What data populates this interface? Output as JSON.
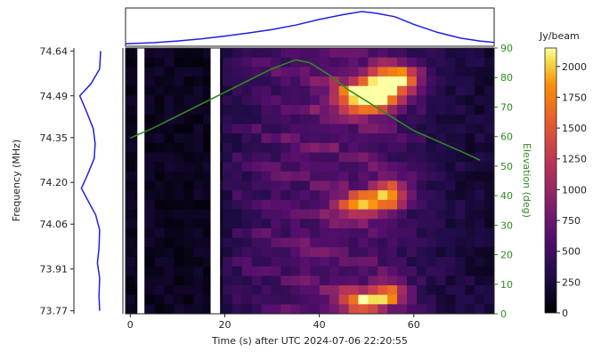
{
  "chart_data": {
    "type": "heatmap",
    "title": "",
    "xlabel": "Time (s) after UTC 2024-07-06 22:20:55",
    "ylabel": "Frequency (MHz)",
    "y2label": "Elevation (deg)",
    "colorbar_label": "Jy/beam",
    "colormap": "inferno",
    "xlim": [
      -1,
      77
    ],
    "ylim_freq": [
      73.76,
      74.65
    ],
    "ylim_elev": [
      0,
      90
    ],
    "clim": [
      0,
      2150
    ],
    "x_ticks": [
      "0",
      "20",
      "40",
      "60"
    ],
    "y_ticks": [
      "74.64",
      "74.49",
      "74.35",
      "74.20",
      "74.06",
      "73.91",
      "73.77"
    ],
    "y2_ticks": [
      "90",
      "80",
      "70",
      "60",
      "50",
      "40",
      "30",
      "20",
      "10",
      "0"
    ],
    "colorbar_ticks": [
      "2000",
      "1750",
      "1500",
      "1250",
      "1000",
      "750",
      "500",
      "250",
      "0"
    ],
    "masked_time_ranges": [
      [
        1.5,
        3
      ],
      [
        17,
        19
      ]
    ],
    "grid": false,
    "elevation_curve": {
      "color": "#2e8b1f",
      "points": [
        [
          0,
          59.5
        ],
        [
          5,
          63
        ],
        [
          10,
          67
        ],
        [
          15,
          71
        ],
        [
          20,
          75
        ],
        [
          25,
          79
        ],
        [
          30,
          83
        ],
        [
          35,
          86
        ],
        [
          38,
          85
        ],
        [
          42,
          81
        ],
        [
          46,
          76
        ],
        [
          50,
          72
        ],
        [
          55,
          67
        ],
        [
          60,
          62
        ],
        [
          65,
          58.5
        ],
        [
          70,
          55
        ],
        [
          74,
          52
        ]
      ]
    },
    "time_profile": {
      "color": "#1f1fe6",
      "points": [
        [
          -1,
          0.02
        ],
        [
          5,
          0.05
        ],
        [
          10,
          0.1
        ],
        [
          15,
          0.16
        ],
        [
          20,
          0.24
        ],
        [
          25,
          0.33
        ],
        [
          30,
          0.43
        ],
        [
          35,
          0.56
        ],
        [
          40,
          0.72
        ],
        [
          45,
          0.86
        ],
        [
          49,
          0.95
        ],
        [
          52,
          0.9
        ],
        [
          56,
          0.8
        ],
        [
          60,
          0.58
        ],
        [
          65,
          0.35
        ],
        [
          70,
          0.18
        ],
        [
          74,
          0.1
        ],
        [
          77,
          0.06
        ]
      ]
    },
    "freq_profile": {
      "color": "#1f1fe6",
      "points": [
        [
          74.64,
          0.75
        ],
        [
          74.58,
          0.72
        ],
        [
          74.53,
          0.45
        ],
        [
          74.49,
          0.1
        ],
        [
          74.44,
          0.3
        ],
        [
          74.38,
          0.52
        ],
        [
          74.33,
          0.58
        ],
        [
          74.28,
          0.55
        ],
        [
          74.22,
          0.32
        ],
        [
          74.18,
          0.15
        ],
        [
          74.14,
          0.35
        ],
        [
          74.09,
          0.6
        ],
        [
          74.04,
          0.72
        ],
        [
          73.98,
          0.7
        ],
        [
          73.93,
          0.65
        ],
        [
          73.88,
          0.72
        ],
        [
          73.82,
          0.7
        ],
        [
          73.77,
          0.72
        ]
      ]
    },
    "bright_features": [
      {
        "time": [
          45,
          55
        ],
        "freq": [
          74.44,
          74.53
        ],
        "intensity": 2000
      },
      {
        "time": [
          52,
          60
        ],
        "freq": [
          74.51,
          74.58
        ],
        "intensity": 1800
      },
      {
        "time": [
          45,
          53
        ],
        "freq": [
          74.1,
          74.15
        ],
        "intensity": 1500
      },
      {
        "time": [
          52,
          58
        ],
        "freq": [
          74.13,
          74.2
        ],
        "intensity": 1300
      },
      {
        "time": [
          45,
          53
        ],
        "freq": [
          73.77,
          73.83
        ],
        "intensity": 1400
      },
      {
        "time": [
          52,
          58
        ],
        "freq": [
          73.8,
          73.86
        ],
        "intensity": 1100
      }
    ]
  }
}
